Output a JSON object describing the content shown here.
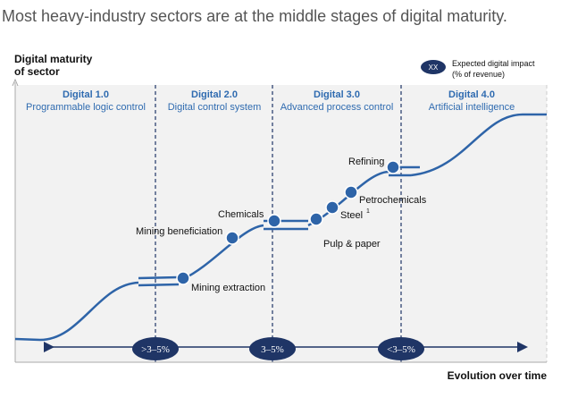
{
  "title": "Most heavy-industry sectors are at the middle stages of digital maturity.",
  "y_axis_label": [
    "Digital maturity",
    "of sector"
  ],
  "x_axis_label": "Evolution over time",
  "legend": {
    "badge": "XX",
    "lines": [
      "Expected digital impact",
      "(% of revenue)"
    ]
  },
  "stages": [
    {
      "name": "Digital 1.0",
      "description": "Programmable logic control"
    },
    {
      "name": "Digital 2.0",
      "description": "Digital control system"
    },
    {
      "name": "Digital 3.0",
      "description": "Advanced process control"
    },
    {
      "name": "Digital 4.0",
      "description": "Artificial intelligence"
    }
  ],
  "sectors": [
    {
      "label": "Mining extraction"
    },
    {
      "label": "Mining beneficiation"
    },
    {
      "label": "Chemicals"
    },
    {
      "label": "Pulp & paper"
    },
    {
      "label": "Steel",
      "superscript": "1"
    },
    {
      "label": "Petrochemicals"
    },
    {
      "label": "Refining"
    }
  ],
  "impacts": [
    ">3–5%",
    "3–5%",
    "<3–5%"
  ]
}
